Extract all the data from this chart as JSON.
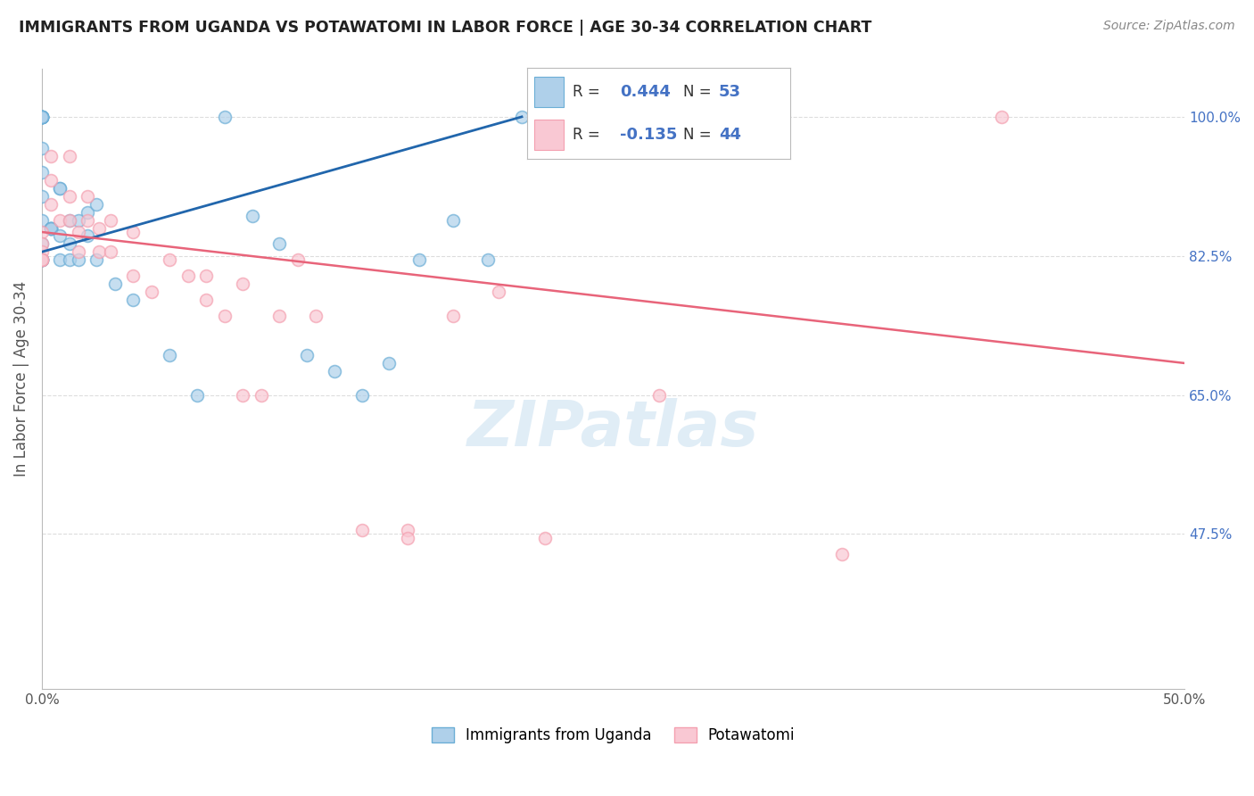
{
  "title": "IMMIGRANTS FROM UGANDA VS POTAWATOMI IN LABOR FORCE | AGE 30-34 CORRELATION CHART",
  "source": "Source: ZipAtlas.com",
  "ylabel": "In Labor Force | Age 30-34",
  "xlim": [
    0.0,
    0.5
  ],
  "ylim": [
    0.28,
    1.06
  ],
  "x_ticks": [
    0.0,
    0.1,
    0.2,
    0.3,
    0.4,
    0.5
  ],
  "x_tick_labels": [
    "0.0%",
    "",
    "",
    "",
    "",
    "50.0%"
  ],
  "y_tick_labels_right": [
    "100.0%",
    "82.5%",
    "65.0%",
    "47.5%"
  ],
  "y_tick_vals_right": [
    1.0,
    0.825,
    0.65,
    0.475
  ],
  "uganda_color": "#6baed6",
  "potawatomi_color": "#f4a0b0",
  "uganda_line_color": "#2166ac",
  "potawatomi_line_color": "#e8647a",
  "R_uganda": 0.444,
  "N_uganda": 53,
  "R_potawatomi": -0.135,
  "N_potawatomi": 44,
  "watermark_text": "ZIPatlas",
  "uganda_line_x": [
    0.0,
    0.21
  ],
  "uganda_line_y": [
    0.83,
    1.0
  ],
  "potawatomi_line_x": [
    0.0,
    0.5
  ],
  "potawatomi_line_y": [
    0.855,
    0.69
  ],
  "uganda_x": [
    0.0,
    0.0,
    0.0,
    0.0,
    0.0,
    0.0,
    0.0,
    0.0,
    0.0,
    0.0,
    0.0,
    0.0,
    0.0,
    0.0,
    0.0,
    0.0,
    0.0,
    0.0,
    0.0,
    0.0,
    0.004,
    0.004,
    0.004,
    0.004,
    0.004,
    0.008,
    0.008,
    0.008,
    0.008,
    0.012,
    0.012,
    0.012,
    0.016,
    0.016,
    0.02,
    0.02,
    0.024,
    0.024,
    0.032,
    0.04,
    0.056,
    0.068,
    0.08,
    0.092,
    0.104,
    0.116,
    0.128,
    0.14,
    0.152,
    0.165,
    0.18,
    0.195,
    0.21
  ],
  "uganda_y": [
    1.0,
    1.0,
    1.0,
    1.0,
    1.0,
    1.0,
    1.0,
    1.0,
    1.0,
    1.0,
    0.96,
    0.93,
    0.9,
    0.87,
    0.84,
    0.82,
    0.82,
    0.82,
    0.82,
    0.82,
    0.86,
    0.86,
    0.86,
    0.86,
    0.86,
    0.91,
    0.91,
    0.85,
    0.82,
    0.87,
    0.84,
    0.82,
    0.87,
    0.82,
    0.88,
    0.85,
    0.89,
    0.82,
    0.79,
    0.77,
    0.7,
    0.65,
    1.0,
    0.875,
    0.84,
    0.7,
    0.68,
    0.65,
    0.69,
    0.82,
    0.87,
    0.82,
    1.0
  ],
  "potawatomi_x": [
    0.0,
    0.0,
    0.0,
    0.0,
    0.0,
    0.0,
    0.004,
    0.004,
    0.004,
    0.008,
    0.012,
    0.012,
    0.012,
    0.016,
    0.016,
    0.02,
    0.02,
    0.025,
    0.025,
    0.03,
    0.03,
    0.04,
    0.04,
    0.048,
    0.056,
    0.064,
    0.072,
    0.072,
    0.08,
    0.088,
    0.088,
    0.096,
    0.104,
    0.112,
    0.12,
    0.14,
    0.16,
    0.16,
    0.18,
    0.2,
    0.22,
    0.27,
    0.35,
    0.42
  ],
  "potawatomi_y": [
    0.855,
    0.84,
    0.83,
    0.82,
    0.82,
    0.82,
    0.95,
    0.92,
    0.89,
    0.87,
    0.95,
    0.9,
    0.87,
    0.855,
    0.83,
    0.9,
    0.87,
    0.86,
    0.83,
    0.87,
    0.83,
    0.855,
    0.8,
    0.78,
    0.82,
    0.8,
    0.8,
    0.77,
    0.75,
    0.79,
    0.65,
    0.65,
    0.75,
    0.82,
    0.75,
    0.48,
    0.48,
    0.47,
    0.75,
    0.78,
    0.47,
    0.65,
    0.45,
    1.0
  ],
  "background_color": "#ffffff",
  "grid_color": "#dddddd",
  "title_color": "#222222",
  "right_axis_color": "#4472c4",
  "legend_label_color": "#4472c4"
}
